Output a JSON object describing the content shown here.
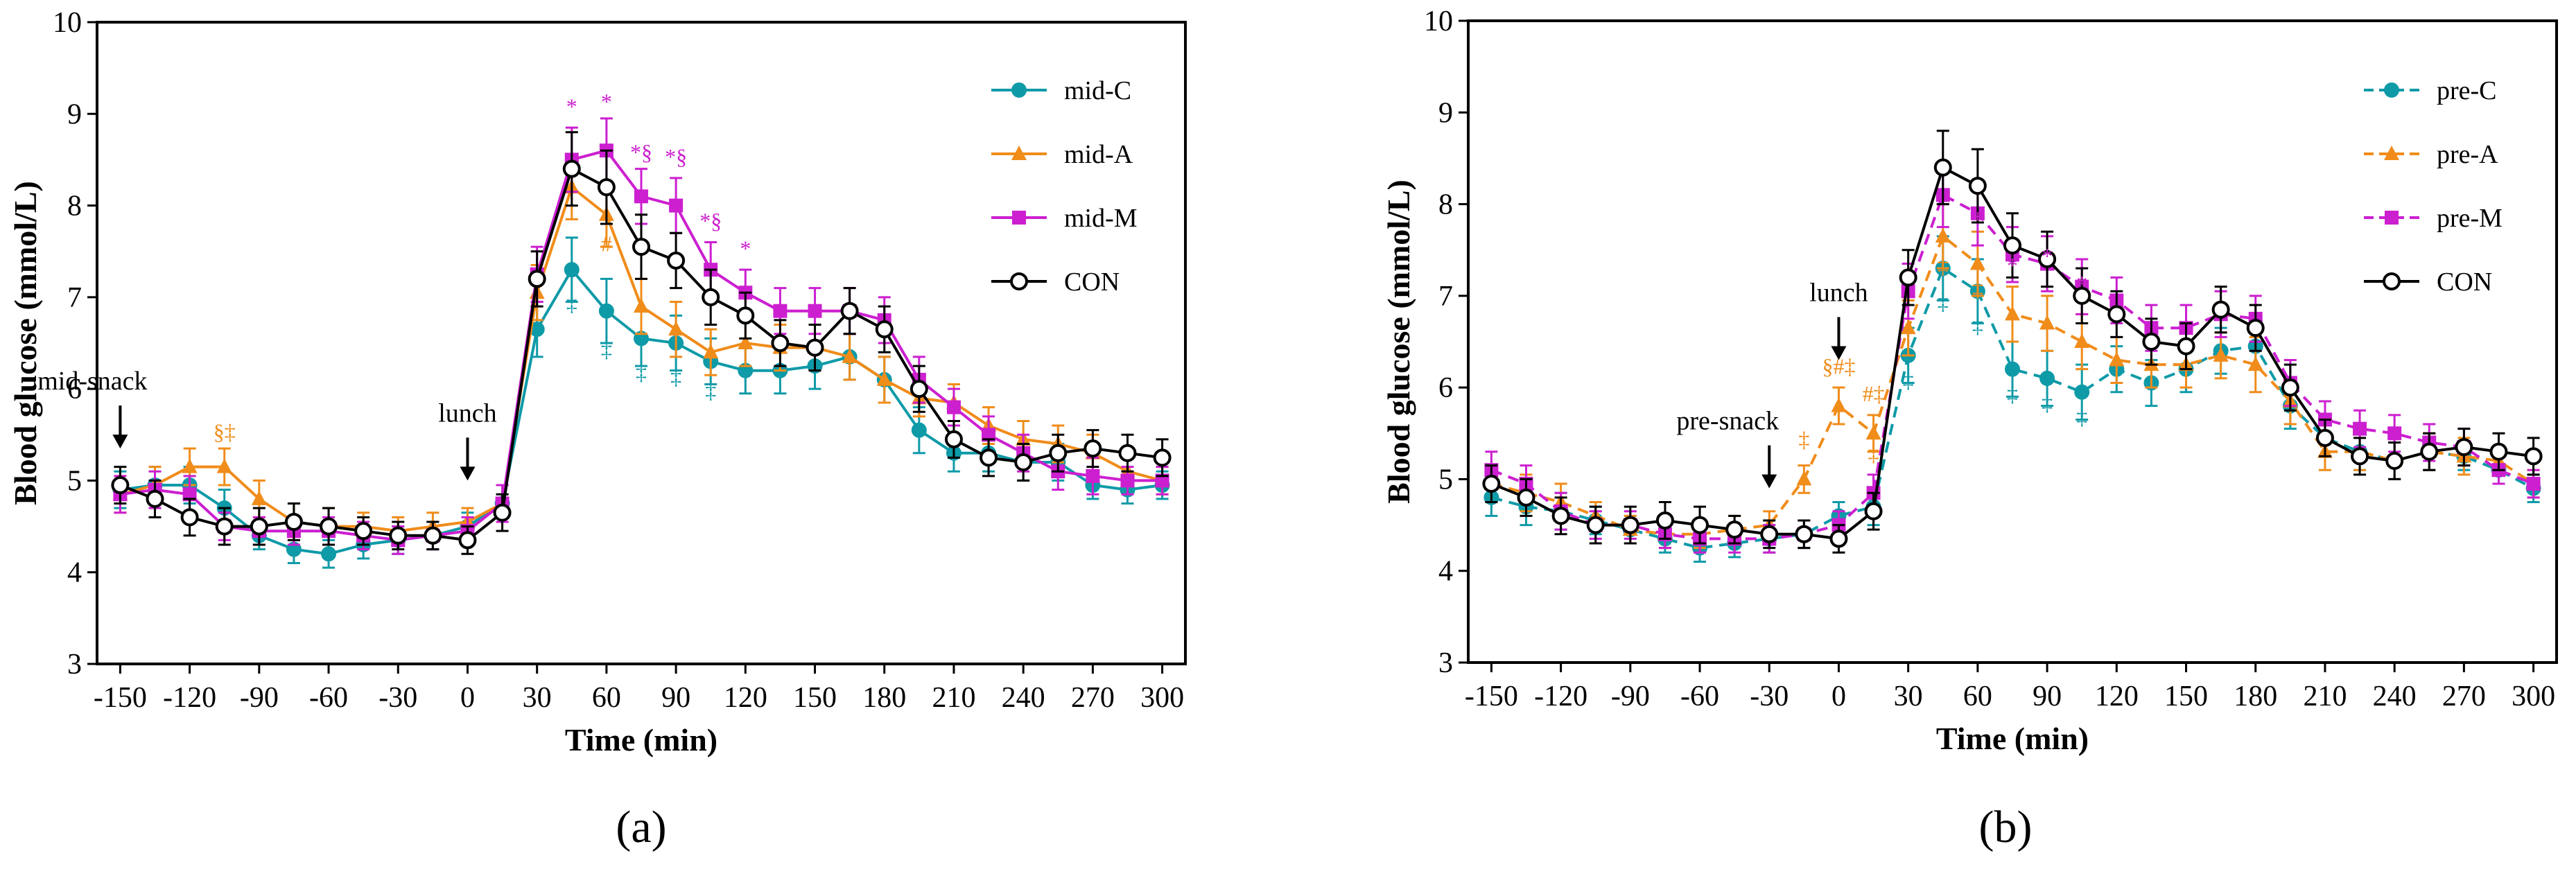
{
  "chart_data": [
    {
      "type": "line",
      "panel_label": "(a)",
      "xlabel": "Time (min)",
      "ylabel": "Blood glucose (mmol/L)",
      "xlim": [
        -160,
        310
      ],
      "ylim": [
        3,
        10
      ],
      "xticks": [
        -150,
        -120,
        -90,
        -60,
        -30,
        0,
        30,
        60,
        90,
        120,
        150,
        180,
        210,
        240,
        270,
        300
      ],
      "yticks": [
        3,
        4,
        5,
        6,
        7,
        8,
        9,
        10
      ],
      "x": [
        -150,
        -135,
        -120,
        -105,
        -90,
        -75,
        -60,
        -45,
        -30,
        -15,
        0,
        15,
        30,
        45,
        60,
        75,
        90,
        105,
        120,
        135,
        150,
        165,
        180,
        195,
        210,
        225,
        240,
        255,
        270,
        285,
        300
      ],
      "legend_position": "top-right",
      "series": [
        {
          "name": "mid-C",
          "color": "#0E9AA7",
          "marker": "circle",
          "dashed": false,
          "values": [
            4.9,
            4.95,
            4.95,
            4.7,
            4.4,
            4.25,
            4.2,
            4.3,
            4.35,
            4.4,
            4.5,
            4.75,
            6.65,
            7.3,
            6.85,
            6.55,
            6.5,
            6.3,
            6.2,
            6.2,
            6.25,
            6.35,
            6.1,
            5.55,
            5.3,
            5.3,
            5.2,
            5.2,
            4.95,
            4.9,
            4.95
          ],
          "errors": [
            0.2,
            0.2,
            0.2,
            0.2,
            0.15,
            0.15,
            0.15,
            0.15,
            0.15,
            0.15,
            0.15,
            0.2,
            0.3,
            0.35,
            0.35,
            0.3,
            0.3,
            0.25,
            0.25,
            0.25,
            0.25,
            0.25,
            0.25,
            0.25,
            0.2,
            0.2,
            0.2,
            0.2,
            0.15,
            0.15,
            0.15
          ]
        },
        {
          "name": "mid-A",
          "color": "#F08C1A",
          "marker": "triangle",
          "dashed": false,
          "values": [
            4.85,
            4.95,
            5.15,
            5.15,
            4.8,
            4.55,
            4.5,
            4.5,
            4.45,
            4.5,
            4.55,
            4.75,
            7.05,
            8.2,
            7.9,
            6.9,
            6.65,
            6.4,
            6.5,
            6.45,
            6.45,
            6.35,
            6.1,
            5.9,
            5.85,
            5.6,
            5.45,
            5.4,
            5.3,
            5.1,
            5.0
          ],
          "errors": [
            0.2,
            0.2,
            0.2,
            0.2,
            0.2,
            0.2,
            0.2,
            0.15,
            0.15,
            0.15,
            0.15,
            0.2,
            0.3,
            0.35,
            0.35,
            0.3,
            0.3,
            0.25,
            0.25,
            0.25,
            0.25,
            0.25,
            0.25,
            0.2,
            0.2,
            0.2,
            0.2,
            0.2,
            0.2,
            0.15,
            0.15
          ]
        },
        {
          "name": "mid-M",
          "color": "#CC1FD0",
          "marker": "square",
          "dashed": false,
          "values": [
            4.85,
            4.9,
            4.85,
            4.5,
            4.45,
            4.45,
            4.45,
            4.4,
            4.35,
            4.4,
            4.45,
            4.75,
            7.25,
            8.5,
            8.6,
            8.1,
            8.0,
            7.3,
            7.05,
            6.85,
            6.85,
            6.85,
            6.75,
            6.1,
            5.8,
            5.5,
            5.3,
            5.1,
            5.05,
            5.0,
            5.0
          ],
          "errors": [
            0.2,
            0.2,
            0.2,
            0.15,
            0.15,
            0.15,
            0.15,
            0.15,
            0.15,
            0.15,
            0.15,
            0.2,
            0.3,
            0.35,
            0.35,
            0.3,
            0.3,
            0.3,
            0.25,
            0.25,
            0.25,
            0.25,
            0.25,
            0.25,
            0.2,
            0.2,
            0.2,
            0.2,
            0.2,
            0.15,
            0.15
          ]
        },
        {
          "name": "CON",
          "color": "#000000",
          "marker": "open-circle",
          "dashed": false,
          "values": [
            4.95,
            4.8,
            4.6,
            4.5,
            4.5,
            4.55,
            4.5,
            4.45,
            4.4,
            4.4,
            4.35,
            4.65,
            7.2,
            8.4,
            8.2,
            7.55,
            7.4,
            7.0,
            6.8,
            6.5,
            6.45,
            6.85,
            6.65,
            6.0,
            5.45,
            5.25,
            5.2,
            5.3,
            5.35,
            5.3,
            5.25
          ],
          "errors": [
            0.2,
            0.2,
            0.2,
            0.2,
            0.2,
            0.2,
            0.2,
            0.15,
            0.15,
            0.15,
            0.15,
            0.2,
            0.3,
            0.4,
            0.4,
            0.35,
            0.3,
            0.3,
            0.25,
            0.25,
            0.25,
            0.25,
            0.25,
            0.25,
            0.2,
            0.2,
            0.2,
            0.2,
            0.2,
            0.2,
            0.2
          ]
        }
      ],
      "arrows": [
        {
          "label": "mid-snack",
          "x": -150,
          "y_value": 5.35
        },
        {
          "label": "lunch",
          "x": 0,
          "y_value": 5.0
        }
      ],
      "significance": [
        {
          "x": -105,
          "y": 5.45,
          "text": "§‡",
          "color": "#F08C1A"
        },
        {
          "x": 45,
          "y": 9.0,
          "text": "*",
          "color": "#CC1FD0"
        },
        {
          "x": 60,
          "y": 9.05,
          "text": "*",
          "color": "#CC1FD0"
        },
        {
          "x": 75,
          "y": 8.5,
          "text": "*§",
          "color": "#CC1FD0"
        },
        {
          "x": 90,
          "y": 8.45,
          "text": "*§",
          "color": "#CC1FD0"
        },
        {
          "x": 105,
          "y": 7.75,
          "text": "*§",
          "color": "#CC1FD0"
        },
        {
          "x": 120,
          "y": 7.45,
          "text": "*",
          "color": "#CC1FD0"
        },
        {
          "x": 60,
          "y": 7.5,
          "text": "#",
          "color": "#F08C1A"
        },
        {
          "x": 45,
          "y": 6.85,
          "text": "‡",
          "color": "#0E9AA7"
        },
        {
          "x": 60,
          "y": 6.35,
          "text": "‡",
          "color": "#0E9AA7"
        },
        {
          "x": 75,
          "y": 6.1,
          "text": "‡",
          "color": "#0E9AA7"
        },
        {
          "x": 90,
          "y": 6.05,
          "text": "‡",
          "color": "#0E9AA7"
        },
        {
          "x": 105,
          "y": 5.9,
          "text": "‡",
          "color": "#0E9AA7"
        }
      ]
    },
    {
      "type": "line",
      "panel_label": "(b)",
      "xlabel": "Time (min)",
      "ylabel": "Blood glucose (mmol/L)",
      "xlim": [
        -160,
        310
      ],
      "ylim": [
        3,
        10
      ],
      "xticks": [
        -150,
        -120,
        -90,
        -60,
        -30,
        0,
        30,
        60,
        90,
        120,
        150,
        180,
        210,
        240,
        270,
        300
      ],
      "yticks": [
        3,
        4,
        5,
        6,
        7,
        8,
        9,
        10
      ],
      "x": [
        -150,
        -135,
        -120,
        -105,
        -90,
        -75,
        -60,
        -45,
        -30,
        -15,
        0,
        15,
        30,
        45,
        60,
        75,
        90,
        105,
        120,
        135,
        150,
        165,
        180,
        195,
        210,
        225,
        240,
        255,
        270,
        285,
        300
      ],
      "legend_position": "top-right",
      "series": [
        {
          "name": "pre-C",
          "color": "#0E9AA7",
          "marker": "circle",
          "dashed": true,
          "values": [
            4.8,
            4.7,
            4.65,
            4.55,
            4.45,
            4.35,
            4.25,
            4.3,
            4.35,
            4.4,
            4.6,
            4.7,
            6.35,
            7.3,
            7.05,
            6.2,
            6.1,
            5.95,
            6.2,
            6.05,
            6.2,
            6.4,
            6.45,
            5.8,
            5.45,
            5.3,
            5.2,
            5.3,
            5.25,
            5.1,
            4.9
          ],
          "errors": [
            0.2,
            0.2,
            0.2,
            0.15,
            0.15,
            0.15,
            0.15,
            0.15,
            0.15,
            0.15,
            0.15,
            0.2,
            0.3,
            0.35,
            0.35,
            0.3,
            0.3,
            0.3,
            0.25,
            0.25,
            0.25,
            0.25,
            0.25,
            0.25,
            0.2,
            0.2,
            0.2,
            0.2,
            0.15,
            0.15,
            0.15
          ]
        },
        {
          "name": "pre-A",
          "color": "#F08C1A",
          "marker": "triangle",
          "dashed": true,
          "values": [
            4.95,
            4.85,
            4.75,
            4.6,
            4.45,
            4.4,
            4.4,
            4.45,
            4.5,
            5.0,
            5.8,
            5.5,
            6.65,
            7.65,
            7.35,
            6.8,
            6.7,
            6.5,
            6.3,
            6.25,
            6.25,
            6.35,
            6.25,
            5.85,
            5.3,
            5.3,
            5.2,
            5.3,
            5.25,
            5.2,
            4.95
          ],
          "errors": [
            0.2,
            0.2,
            0.2,
            0.15,
            0.15,
            0.15,
            0.15,
            0.15,
            0.15,
            0.15,
            0.2,
            0.2,
            0.3,
            0.35,
            0.35,
            0.3,
            0.3,
            0.3,
            0.25,
            0.25,
            0.25,
            0.25,
            0.3,
            0.25,
            0.2,
            0.2,
            0.2,
            0.2,
            0.2,
            0.15,
            0.15
          ]
        },
        {
          "name": "pre-M",
          "color": "#CC1FD0",
          "marker": "square",
          "dashed": true,
          "values": [
            5.1,
            4.95,
            4.65,
            4.5,
            4.5,
            4.4,
            4.35,
            4.35,
            4.35,
            4.4,
            4.5,
            4.85,
            7.05,
            8.1,
            7.9,
            7.45,
            7.35,
            7.1,
            6.95,
            6.65,
            6.65,
            6.8,
            6.75,
            6.05,
            5.65,
            5.55,
            5.5,
            5.4,
            5.35,
            5.1,
            4.95
          ],
          "errors": [
            0.2,
            0.2,
            0.2,
            0.15,
            0.15,
            0.15,
            0.15,
            0.15,
            0.15,
            0.15,
            0.15,
            0.2,
            0.3,
            0.35,
            0.35,
            0.3,
            0.3,
            0.3,
            0.25,
            0.25,
            0.25,
            0.25,
            0.25,
            0.25,
            0.2,
            0.2,
            0.2,
            0.2,
            0.2,
            0.15,
            0.15
          ]
        },
        {
          "name": "CON",
          "color": "#000000",
          "marker": "open-circle",
          "dashed": false,
          "values": [
            4.95,
            4.8,
            4.6,
            4.5,
            4.5,
            4.55,
            4.5,
            4.45,
            4.4,
            4.4,
            4.35,
            4.65,
            7.2,
            8.4,
            8.2,
            7.55,
            7.4,
            7.0,
            6.8,
            6.5,
            6.45,
            6.85,
            6.65,
            6.0,
            5.45,
            5.25,
            5.2,
            5.3,
            5.35,
            5.3,
            5.25
          ],
          "errors": [
            0.2,
            0.2,
            0.2,
            0.2,
            0.2,
            0.2,
            0.2,
            0.15,
            0.15,
            0.15,
            0.15,
            0.2,
            0.3,
            0.4,
            0.4,
            0.35,
            0.3,
            0.3,
            0.25,
            0.25,
            0.25,
            0.25,
            0.25,
            0.25,
            0.2,
            0.2,
            0.2,
            0.2,
            0.2,
            0.2,
            0.2
          ]
        }
      ],
      "arrows": [
        {
          "label": "lunch",
          "x": 0,
          "y_value": 6.3
        },
        {
          "label": "pre-snack",
          "x": -30,
          "y_value": 4.9
        }
      ],
      "significance": [
        {
          "x": 0,
          "y": 6.15,
          "text": "§#‡",
          "color": "#F08C1A"
        },
        {
          "x": 15,
          "y": 5.85,
          "text": "#‡",
          "color": "#F08C1A"
        },
        {
          "x": -15,
          "y": 5.35,
          "text": "‡",
          "color": "#F08C1A"
        },
        {
          "x": 15,
          "y": 5.2,
          "text": "‡",
          "color": "#F08C1A"
        },
        {
          "x": 60,
          "y": 7.75,
          "text": "*",
          "color": "#CC1FD0"
        },
        {
          "x": 75,
          "y": 7.25,
          "text": "*",
          "color": "#CC1FD0"
        },
        {
          "x": 90,
          "y": 7.35,
          "text": "*",
          "color": "#CC1FD0"
        },
        {
          "x": 105,
          "y": 7.05,
          "text": "*",
          "color": "#CC1FD0"
        },
        {
          "x": 45,
          "y": 7.25,
          "text": "‡",
          "color": "#F08C1A"
        },
        {
          "x": 60,
          "y": 7.0,
          "text": "‡",
          "color": "#F08C1A"
        },
        {
          "x": 30,
          "y": 6.0,
          "text": "‡",
          "color": "#0E9AA7"
        },
        {
          "x": 45,
          "y": 6.85,
          "text": "‡",
          "color": "#0E9AA7"
        },
        {
          "x": 60,
          "y": 6.6,
          "text": "‡",
          "color": "#0E9AA7"
        },
        {
          "x": 75,
          "y": 5.85,
          "text": "‡",
          "color": "#0E9AA7"
        },
        {
          "x": 90,
          "y": 5.75,
          "text": "‡",
          "color": "#0E9AA7"
        },
        {
          "x": 105,
          "y": 5.6,
          "text": "‡",
          "color": "#0E9AA7"
        }
      ]
    }
  ]
}
